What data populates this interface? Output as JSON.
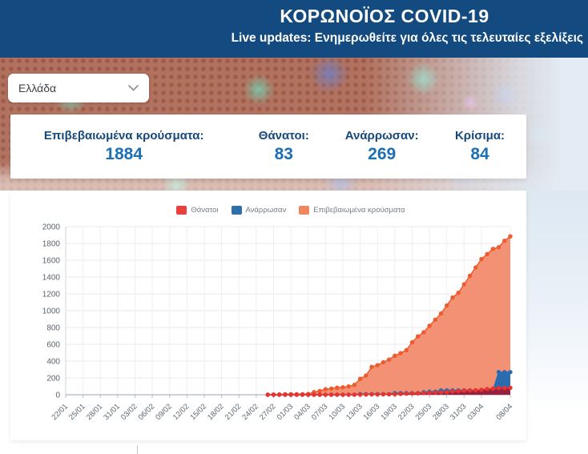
{
  "header": {
    "title": "ΚΟΡΩΝΟΪΟΣ COVID-19",
    "subtitle": "Live updates: Ενημερωθείτε για όλες τις τελευταίες εξελίξεις"
  },
  "country_select": {
    "value": "Ελλάδα"
  },
  "stats": [
    {
      "label": "Επιβεβαιωμένα κρούσματα:",
      "value": "1884"
    },
    {
      "label": "Θάνατοι:",
      "value": "83"
    },
    {
      "label": "Ανάρρωσαν:",
      "value": "269"
    },
    {
      "label": "Κρίσιμα:",
      "value": "84"
    }
  ],
  "colors": {
    "header_bg": "#134a80",
    "stat_label_blue": "#17497b",
    "stat_value_blue": "#1b6fb5",
    "deaths_red": "#e8413d",
    "recovered_blue": "#2f6ea8",
    "confirmed_orange": "#ee5b2e",
    "confirmed_fill": "#f29173"
  },
  "chart_data": {
    "type": "area",
    "title": "",
    "grid": true,
    "legend_position": "top",
    "ylim": [
      0,
      2000
    ],
    "y_ticks": [
      0,
      200,
      400,
      600,
      800,
      1000,
      1200,
      1400,
      1600,
      1800,
      2000
    ],
    "x_axis_start_label": "22/01",
    "x_axis_total_days": 77,
    "x_tick_days": [
      0,
      3,
      6,
      9,
      12,
      15,
      18,
      21,
      24,
      27,
      30,
      33,
      36,
      39,
      42,
      45,
      48,
      51,
      54,
      57,
      60,
      63,
      66,
      69,
      72,
      77
    ],
    "x_tick_labels": [
      "22/01",
      "25/01",
      "28/01",
      "31/01",
      "03/02",
      "06/02",
      "09/02",
      "12/02",
      "15/02",
      "18/02",
      "21/02",
      "24/02",
      "27/02",
      "01/03",
      "04/03",
      "07/03",
      "10/03",
      "13/03",
      "16/03",
      "19/03",
      "22/03",
      "25/03",
      "28/03",
      "31/03",
      "03/04",
      "08/04"
    ],
    "data_start_day": 35,
    "categories": [
      "26/02",
      "27/02",
      "28/02",
      "29/02",
      "01/03",
      "02/03",
      "03/03",
      "04/03",
      "05/03",
      "06/03",
      "07/03",
      "08/03",
      "09/03",
      "10/03",
      "11/03",
      "12/03",
      "13/03",
      "14/03",
      "15/03",
      "16/03",
      "17/03",
      "18/03",
      "19/03",
      "20/03",
      "21/03",
      "22/03",
      "23/03",
      "24/03",
      "25/03",
      "26/03",
      "27/03",
      "28/03",
      "29/03",
      "30/03",
      "31/03",
      "01/04",
      "02/04",
      "03/04",
      "04/04",
      "05/04",
      "06/04",
      "07/04",
      "08/04"
    ],
    "series": [
      {
        "name": "Θάνατοι",
        "legend_color": "#e8413d",
        "point_color": "#e8332e",
        "fill_color": "rgba(166,22,48,0.88)",
        "values": [
          0,
          0,
          0,
          0,
          0,
          0,
          0,
          0,
          0,
          0,
          0,
          0,
          0,
          0,
          0,
          1,
          1,
          3,
          4,
          4,
          5,
          5,
          6,
          10,
          13,
          15,
          17,
          20,
          22,
          26,
          28,
          32,
          38,
          43,
          49,
          50,
          53,
          59,
          68,
          73,
          79,
          81,
          83
        ]
      },
      {
        "name": "Ανάρρωσαν",
        "legend_color": "#2f6ea8",
        "point_color": "#2b6cb0",
        "fill_color": "#2b6cb0",
        "values": [
          0,
          0,
          0,
          0,
          0,
          0,
          0,
          0,
          0,
          0,
          0,
          0,
          1,
          1,
          1,
          1,
          8,
          8,
          8,
          8,
          8,
          8,
          19,
          19,
          19,
          19,
          19,
          30,
          36,
          36,
          52,
          52,
          52,
          52,
          52,
          52,
          52,
          52,
          52,
          52,
          269,
          269,
          269
        ]
      },
      {
        "name": "Επιβεβαιωμένα κρούσματα",
        "legend_color": "#f0875f",
        "point_color": "#ee5b2e",
        "fill_color": "#f29173",
        "values": [
          1,
          3,
          4,
          7,
          7,
          7,
          7,
          9,
          31,
          45,
          66,
          73,
          84,
          89,
          99,
          117,
          190,
          228,
          331,
          352,
          387,
          418,
          464,
          495,
          530,
          624,
          695,
          743,
          821,
          892,
          966,
          1061,
          1156,
          1212,
          1314,
          1415,
          1514,
          1613,
          1673,
          1735,
          1755,
          1832,
          1884
        ]
      }
    ]
  }
}
